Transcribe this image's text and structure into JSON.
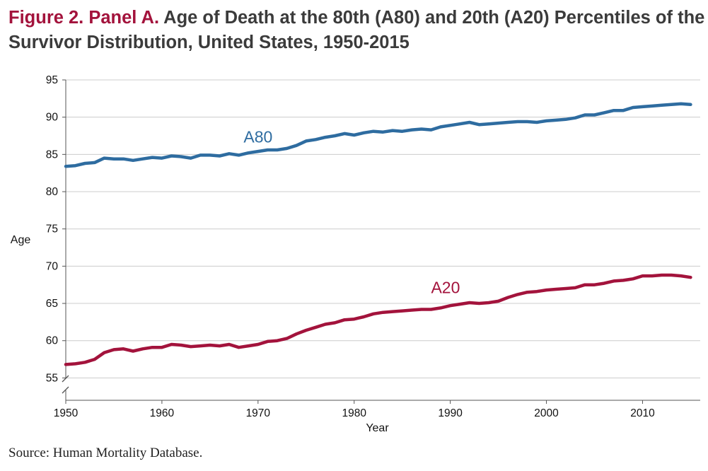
{
  "figure": {
    "label": "Figure 2. Panel A.",
    "title": "Age of Death at the 80th (A80) and 20th (A20) Percentiles of the Survivor Distribution, United States, 1950-2015"
  },
  "source": "Source: Human Mortality Database.",
  "colors": {
    "a80": "#2e6ca0",
    "a20": "#a3133c",
    "grid": "#cccccc",
    "axis": "#555555"
  },
  "chart_data": {
    "type": "line",
    "title": "Age of Death at the 80th (A80) and 20th (A20) Percentiles of the Survivor Distribution, United States, 1950-2015",
    "xlabel": "Year",
    "ylabel": "Age",
    "xlim": [
      1950,
      2016
    ],
    "ylim": [
      52,
      95
    ],
    "y_ticks": [
      55,
      60,
      65,
      70,
      75,
      80,
      85,
      90,
      95
    ],
    "x_ticks": [
      1950,
      1960,
      1970,
      1980,
      1990,
      2000,
      2010
    ],
    "grid": true,
    "axis_break": true,
    "x": [
      1950,
      1951,
      1952,
      1953,
      1954,
      1955,
      1956,
      1957,
      1958,
      1959,
      1960,
      1961,
      1962,
      1963,
      1964,
      1965,
      1966,
      1967,
      1968,
      1969,
      1970,
      1971,
      1972,
      1973,
      1974,
      1975,
      1976,
      1977,
      1978,
      1979,
      1980,
      1981,
      1982,
      1983,
      1984,
      1985,
      1986,
      1987,
      1988,
      1989,
      1990,
      1991,
      1992,
      1993,
      1994,
      1995,
      1996,
      1997,
      1998,
      1999,
      2000,
      2001,
      2002,
      2003,
      2004,
      2005,
      2006,
      2007,
      2008,
      2009,
      2010,
      2011,
      2012,
      2013,
      2014,
      2015
    ],
    "series": [
      {
        "name": "A80",
        "values": [
          83.4,
          83.5,
          83.8,
          83.9,
          84.5,
          84.4,
          84.4,
          84.2,
          84.4,
          84.6,
          84.5,
          84.8,
          84.7,
          84.5,
          84.9,
          84.9,
          84.8,
          85.1,
          84.9,
          85.2,
          85.4,
          85.6,
          85.6,
          85.8,
          86.2,
          86.8,
          87.0,
          87.3,
          87.5,
          87.8,
          87.6,
          87.9,
          88.1,
          88.0,
          88.2,
          88.1,
          88.3,
          88.4,
          88.3,
          88.7,
          88.9,
          89.1,
          89.3,
          89.0,
          89.1,
          89.2,
          89.3,
          89.4,
          89.4,
          89.3,
          89.5,
          89.6,
          89.7,
          89.9,
          90.3,
          90.3,
          90.6,
          90.9,
          90.9,
          91.3,
          91.4,
          91.5,
          91.6,
          91.7,
          91.8,
          91.7
        ]
      },
      {
        "name": "A20",
        "values": [
          56.8,
          56.9,
          57.1,
          57.5,
          58.4,
          58.8,
          58.9,
          58.6,
          58.9,
          59.1,
          59.1,
          59.5,
          59.4,
          59.2,
          59.3,
          59.4,
          59.3,
          59.5,
          59.1,
          59.3,
          59.5,
          59.9,
          60.0,
          60.3,
          60.9,
          61.4,
          61.8,
          62.2,
          62.4,
          62.8,
          62.9,
          63.2,
          63.6,
          63.8,
          63.9,
          64.0,
          64.1,
          64.2,
          64.2,
          64.4,
          64.7,
          64.9,
          65.1,
          65.0,
          65.1,
          65.3,
          65.8,
          66.2,
          66.5,
          66.6,
          66.8,
          66.9,
          67.0,
          67.1,
          67.5,
          67.5,
          67.7,
          68.0,
          68.1,
          68.3,
          68.7,
          68.7,
          68.8,
          68.8,
          68.7,
          68.5
        ]
      }
    ],
    "annotations": [
      {
        "text": "A80",
        "series": "A80"
      },
      {
        "text": "A20",
        "series": "A20"
      }
    ]
  }
}
